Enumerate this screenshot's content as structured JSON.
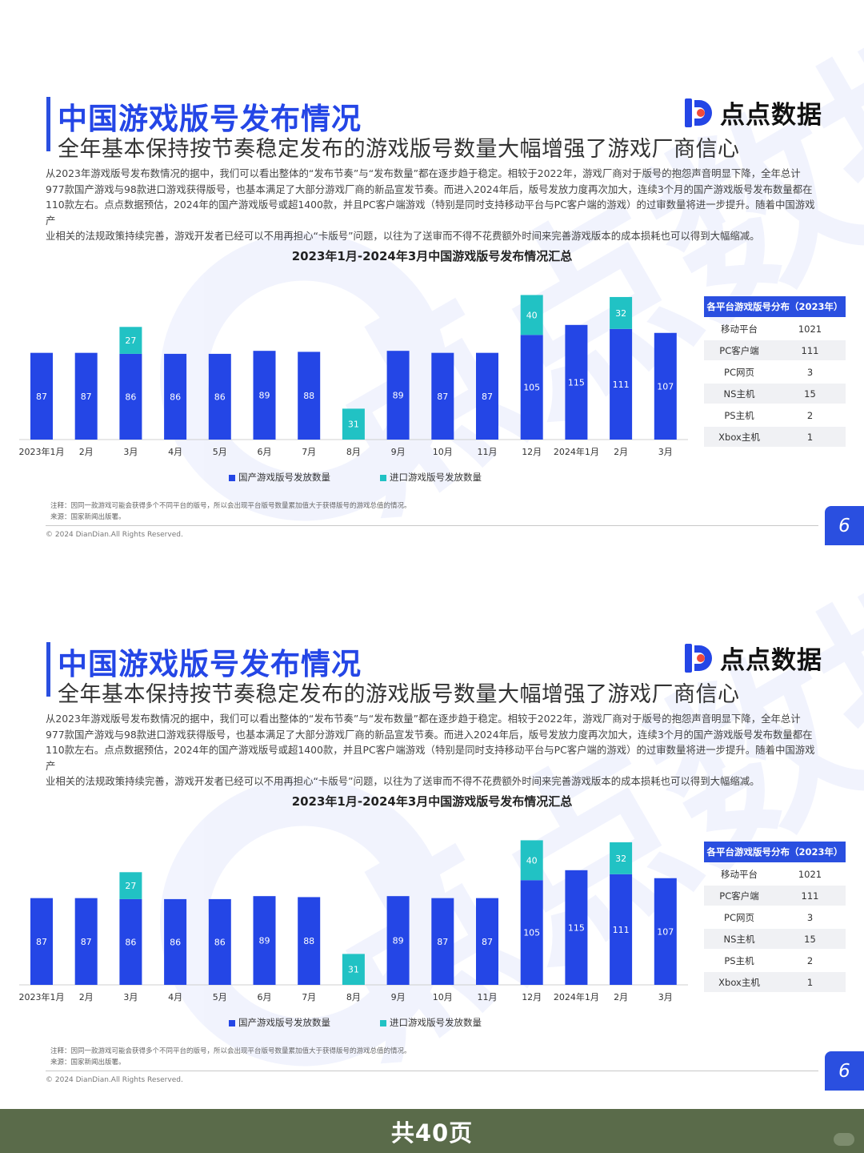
{
  "title": "中国游戏版号发布情况",
  "subtitle": "全年基本保持按节奏稳定发布的游戏版号数量大幅增强了游戏厂商信心",
  "logo_text": "点点数据",
  "paragraph": [
    "从2023年游戏版号发布数情况的据中，我们可以看出整体的“发布节奏”与“发布数量”都在逐步趋于稳定。相较于2022年，游戏厂商对于版号的抱怨声音明显下降，全年总计",
    "977款国产游戏与98款进口游戏获得版号，也基本满足了大部分游戏厂商的新品宣发节奏。而进入2024年后，版号发放力度再次加大，连续3个月的国产游戏版号发布数量都在",
    "110款左右。点点数据预估，2024年的国产游戏版号或超1400款，并且PC客户端游戏（特别是同时支持移动平台与PC客户端的游戏）的过审数量将进一步提升。随着中国游戏产",
    "业相关的法规政策持续完善，游戏开发者已经可以不用再担心“卡版号”问题，以往为了送审而不得不花费额外时间来完善游戏版本的成本损耗也可以得到大幅缩减。"
  ],
  "chart_data": {
    "type": "bar",
    "stacked": true,
    "title": "2023年1月-2024年3月中国游戏版号发布情况汇总",
    "categories": [
      "2023年1月",
      "2月",
      "3月",
      "4月",
      "5月",
      "6月",
      "7月",
      "8月",
      "9月",
      "10月",
      "11月",
      "12月",
      "2024年1月",
      "2月",
      "3月"
    ],
    "series": [
      {
        "name": "国产游戏版号发放数量",
        "color": "#2446e6",
        "values": [
          87,
          87,
          86,
          86,
          86,
          89,
          88,
          null,
          89,
          87,
          87,
          105,
          115,
          111,
          107
        ]
      },
      {
        "name": "进口游戏版号发放数量",
        "color": "#21c2c4",
        "values": [
          null,
          null,
          27,
          null,
          null,
          null,
          null,
          31,
          null,
          null,
          null,
          40,
          null,
          32,
          null
        ]
      }
    ],
    "legend_position": "bottom",
    "grid": false
  },
  "platform_table": {
    "header": "各平台游戏版号分布（2023年）",
    "rows": [
      {
        "name": "移动平台",
        "value": "1021"
      },
      {
        "name": "PC客户端",
        "value": "111"
      },
      {
        "name": "PC网页",
        "value": "3"
      },
      {
        "name": "NS主机",
        "value": "15"
      },
      {
        "name": "PS主机",
        "value": "2"
      },
      {
        "name": "Xbox主机",
        "value": "1"
      }
    ]
  },
  "note": "注释：因同一款游戏可能会获得多个不同平台的版号，所以会出现平台版号数量累加值大于获得版号的游戏总值的情况。",
  "source": "来源：国家新闻出版署。",
  "copyright": "© 2024 DianDian.All Rights Reserved.",
  "page_number": "6",
  "footer": "共40页",
  "colors": {
    "brand_blue": "#2446e6",
    "import_teal": "#21c2c4",
    "footer_bg": "#5a6b4a"
  }
}
